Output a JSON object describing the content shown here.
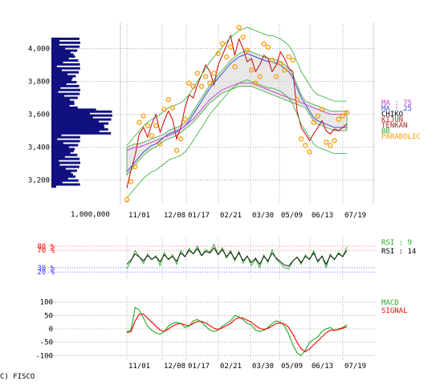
{
  "copyright": "C) FISCO",
  "volume_label": "1,000,000",
  "dates": [
    "11/01",
    "12/08",
    "01/17",
    "02/21",
    "03/30",
    "05/09",
    "06/13",
    "07/19"
  ],
  "chart_data": [
    {
      "type": "line",
      "name": "price",
      "ylim": [
        3050,
        4150
      ],
      "yticks": [
        3200,
        3400,
        3600,
        3800,
        4000
      ],
      "ytick_labels": [
        "3,200",
        "3,400",
        "3,600",
        "3,800",
        "4,000"
      ],
      "x_tick_labels": [
        "11/01",
        "12/08",
        "01/17",
        "02/21",
        "03/30",
        "05/09",
        "06/13",
        "07/19"
      ],
      "legend": [
        {
          "text": "MA : 75",
          "color": "#cc44cc"
        },
        {
          "text": "MA : 25",
          "color": "#3c4fd0"
        },
        {
          "text": "CHIKO",
          "color": "#000000"
        },
        {
          "text": "KIJUN",
          "color": "#cc2222"
        },
        {
          "text": "TENKAN",
          "color": "#aa2222"
        },
        {
          "text": "BB",
          "color": "#33aa33"
        },
        {
          "text": "PARABOLIC",
          "color": "#ff9900"
        }
      ],
      "series": [
        {
          "name": "close",
          "color": "#cc0000",
          "values": [
            3150,
            3260,
            3350,
            3480,
            3520,
            3460,
            3540,
            3600,
            3490,
            3560,
            3620,
            3570,
            3450,
            3520,
            3640,
            3720,
            3700,
            3780,
            3840,
            3900,
            3860,
            3780,
            3900,
            3960,
            4020,
            4080,
            3960,
            4060,
            4000,
            3920,
            3940,
            3860,
            3900,
            3960,
            3940,
            3860,
            3900,
            3980,
            3940,
            3880,
            3860,
            3620,
            3520,
            3480,
            3440,
            3480,
            3520,
            3560,
            3500,
            3480,
            3510,
            3500,
            3520,
            3540
          ]
        },
        {
          "name": "MA 25",
          "color": "#3c4fd0",
          "values": [
            3250,
            3280,
            3310,
            3340,
            3370,
            3390,
            3410,
            3420,
            3440,
            3460,
            3480,
            3490,
            3500,
            3510,
            3530,
            3560,
            3600,
            3640,
            3680,
            3720,
            3760,
            3790,
            3820,
            3850,
            3880,
            3910,
            3930,
            3950,
            3960,
            3970,
            3960,
            3950,
            3940,
            3930,
            3920,
            3920,
            3910,
            3900,
            3880,
            3860,
            3820,
            3760,
            3700,
            3660,
            3620,
            3580,
            3560,
            3550,
            3540,
            3530,
            3520,
            3520,
            3520,
            3520
          ]
        },
        {
          "name": "MA 75",
          "color": "#cc44cc",
          "values": [
            3380,
            3390,
            3400,
            3400,
            3410,
            3420,
            3430,
            3440,
            3450,
            3460,
            3470,
            3480,
            3490,
            3510,
            3530,
            3550,
            3570,
            3600,
            3630,
            3660,
            3690,
            3710,
            3730,
            3750,
            3760,
            3770,
            3780,
            3790,
            3790,
            3790,
            3790,
            3780,
            3770,
            3760,
            3750,
            3740,
            3730,
            3720,
            3710,
            3700,
            3690,
            3680,
            3670,
            3660,
            3650,
            3640,
            3630,
            3620,
            3610,
            3600,
            3600,
            3600,
            3600,
            3600
          ]
        }
      ]
    },
    {
      "type": "line",
      "name": "RSI",
      "ylim": [
        0,
        100
      ],
      "yticks": [
        20,
        30,
        70,
        80
      ],
      "ytick_labels": [
        "20 %",
        "30 %",
        "70 %",
        "80 %"
      ],
      "legend": [
        {
          "text": "RSI : 9",
          "color": "#22aa22"
        },
        {
          "text": "RSI : 14",
          "color": "#000000"
        }
      ],
      "series": [
        {
          "name": "RSI 9",
          "color": "#22aa22",
          "values": [
            28,
            45,
            70,
            55,
            40,
            62,
            48,
            58,
            35,
            65,
            48,
            60,
            38,
            70,
            55,
            75,
            62,
            80,
            58,
            72,
            66,
            84,
            60,
            76,
            52,
            70,
            45,
            68,
            40,
            58,
            35,
            50,
            30,
            60,
            42,
            72,
            50,
            40,
            30,
            28,
            45,
            55,
            38,
            60,
            48,
            70,
            42,
            58,
            30,
            62,
            48,
            66,
            55,
            78
          ]
        },
        {
          "name": "RSI 14",
          "color": "#000000",
          "values": [
            38,
            48,
            62,
            55,
            46,
            58,
            50,
            55,
            44,
            60,
            50,
            56,
            45,
            64,
            56,
            70,
            62,
            74,
            58,
            68,
            64,
            76,
            60,
            72,
            56,
            66,
            50,
            64,
            46,
            56,
            42,
            52,
            38,
            56,
            46,
            64,
            52,
            44,
            36,
            34,
            46,
            54,
            42,
            56,
            50,
            64,
            46,
            56,
            38,
            58,
            50,
            62,
            56,
            70
          ]
        }
      ]
    },
    {
      "type": "line",
      "name": "MACD",
      "ylim": [
        -120,
        120
      ],
      "yticks": [
        -100,
        -50,
        0,
        50,
        100
      ],
      "ytick_labels": [
        "-100",
        "-50",
        "0",
        "50",
        "100"
      ],
      "legend": [
        {
          "text": "MACD",
          "color": "#22aa22"
        },
        {
          "text": "SIGNAL",
          "color": "#ff0000"
        }
      ],
      "series": [
        {
          "name": "MACD",
          "color": "#22aa22",
          "values": [
            -10,
            -5,
            80,
            70,
            40,
            10,
            -5,
            -15,
            -20,
            -10,
            10,
            20,
            25,
            20,
            5,
            10,
            30,
            35,
            25,
            10,
            -5,
            -10,
            -5,
            10,
            20,
            30,
            50,
            45,
            35,
            20,
            15,
            -5,
            -10,
            -5,
            5,
            20,
            30,
            25,
            10,
            -20,
            -60,
            -90,
            -100,
            -80,
            -50,
            -40,
            -30,
            -10,
            0,
            5,
            -5,
            0,
            5,
            15
          ]
        },
        {
          "name": "SIGNAL",
          "color": "#ff0000",
          "values": [
            -15,
            -10,
            30,
            55,
            55,
            40,
            25,
            10,
            -5,
            -10,
            0,
            10,
            18,
            20,
            15,
            12,
            20,
            28,
            28,
            22,
            12,
            2,
            -2,
            4,
            12,
            20,
            35,
            42,
            40,
            32,
            25,
            12,
            2,
            -2,
            2,
            10,
            20,
            22,
            18,
            5,
            -20,
            -50,
            -75,
            -85,
            -75,
            -60,
            -45,
            -30,
            -15,
            -5,
            -5,
            -2,
            2,
            8
          ]
        }
      ]
    }
  ]
}
